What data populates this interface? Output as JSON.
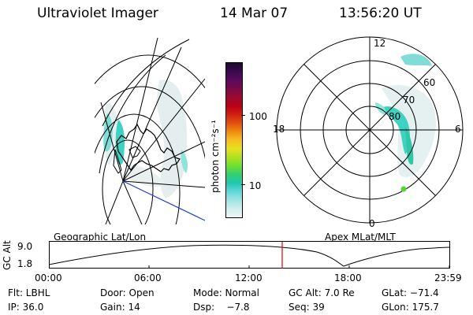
{
  "header": {
    "instrument": "Ultraviolet Imager",
    "date": "14 Mar 07",
    "time": "13:56:20 UT"
  },
  "colorbar": {
    "unit_label": "photon cm⁻²s⁻¹",
    "ticks": [
      "100",
      "10"
    ],
    "colors": [
      "#1a0a2e",
      "#3b0a4f",
      "#5a0a5e",
      "#7a0a4a",
      "#9a0a30",
      "#b80018",
      "#d02010",
      "#e05010",
      "#f08a10",
      "#f5c020",
      "#e8e020",
      "#b0e020",
      "#70e030",
      "#30d070",
      "#20c8b0",
      "#60d8d8",
      "#a0e4e4",
      "#d0eeee",
      "#eef6f6"
    ]
  },
  "polar_plot": {
    "mlt_labels": {
      "top": "12",
      "left": "18",
      "right": "6",
      "bottom": "0"
    },
    "lat_labels": [
      "60",
      "70",
      "80"
    ]
  },
  "timeline": {
    "y_axis_label": "GC Alt",
    "y_ticks": [
      "9.0",
      "1.8"
    ],
    "left_label": "Geographic Lat/Lon",
    "right_label": "Apex MLat/MLT",
    "x_ticks": [
      "00:00",
      "06:00",
      "12:00",
      "18:00",
      "23:59"
    ],
    "current_time_marker": "13:56"
  },
  "info": {
    "row1": {
      "filter": "Flt: LBHL",
      "door": "Door: Open",
      "mode": "Mode: Normal",
      "gcalt": "GC Alt: 7.0 Re",
      "glat": "GLat: −71.4"
    },
    "row2": {
      "ip": "IP: 36.0",
      "gain": "Gain: 14",
      "dsp": "Dsp:    −7.8",
      "seq": "Seq: 39",
      "glon": "GLon: 175.7"
    }
  }
}
